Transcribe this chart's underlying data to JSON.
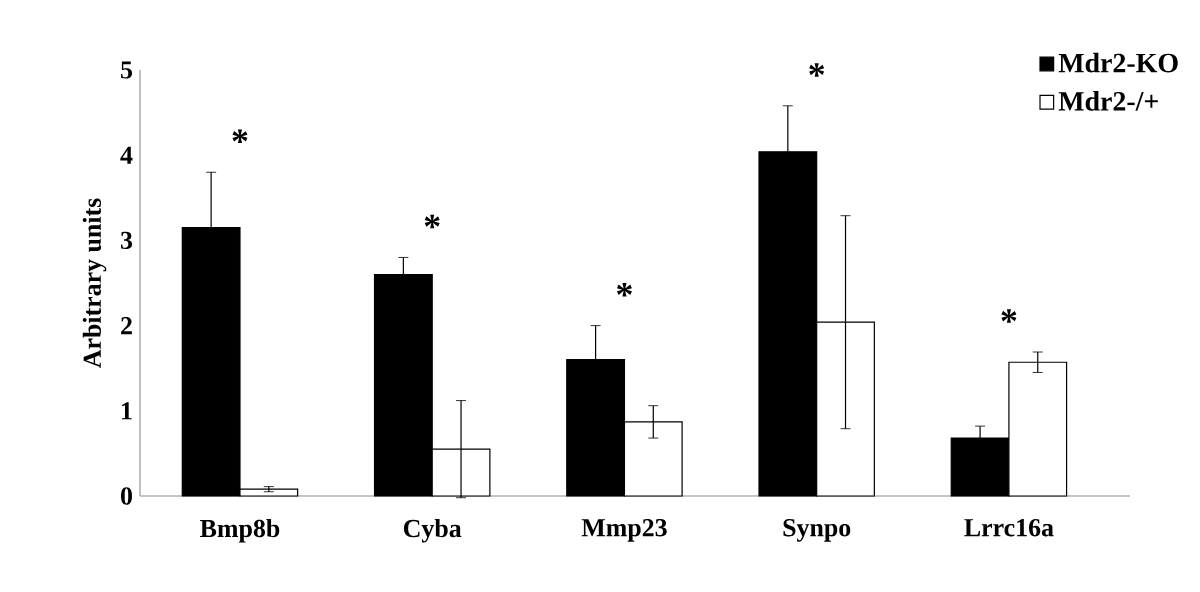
{
  "chart_data": {
    "type": "bar",
    "ylabel": "Arbitrary units",
    "categories": [
      "Bmp8b",
      "Cyba",
      "Mmp23",
      "Synpo",
      "Lrrc16a"
    ],
    "series": [
      {
        "name": "Mdr2-KO",
        "color": "#000000",
        "values": [
          3.15,
          2.6,
          1.6,
          4.04,
          0.68
        ],
        "errors": [
          0.65,
          0.2,
          0.4,
          0.54,
          0.14
        ]
      },
      {
        "name": "Mdr2-/+",
        "color": "#ffffff",
        "values": [
          0.08,
          0.55,
          0.87,
          2.04,
          1.57
        ],
        "errors": [
          0.03,
          0.57,
          0.19,
          1.25,
          0.12
        ]
      }
    ],
    "ylim": [
      0,
      5
    ],
    "yticks": [
      0,
      1,
      2,
      3,
      4,
      5
    ],
    "legend": "top right",
    "annotations": [
      "*",
      "*",
      "*",
      "*",
      "*"
    ]
  }
}
